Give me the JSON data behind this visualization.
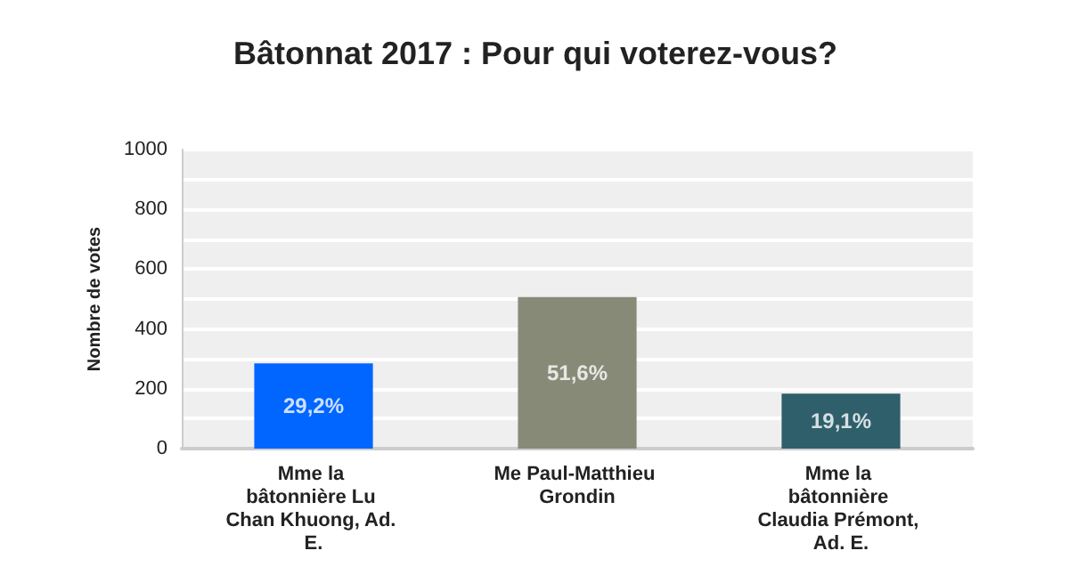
{
  "chart_data": {
    "type": "bar",
    "title": "Bâtonnat 2017 : Pour qui voterez-vous?",
    "ylabel": "Nombre de votes",
    "categories": [
      "Mme la bâtonnière Lu Chan Khuong, Ad. E.",
      "Me Paul-Matthieu Grondin",
      "Mme la bâtonnière Claudia Prémont, Ad. E."
    ],
    "values": [
      285,
      507,
      184
    ],
    "colors": [
      "#0066ff",
      "#888a78",
      "#2e5f6b"
    ],
    "annotations": [
      {
        "text": "29,2%",
        "x": "Mme la bâtonnière Lu Chan Khuong, Ad. E.",
        "y": 285
      },
      {
        "text": "51,6%",
        "x": "Me Paul-Matthieu Grondin",
        "y": 507
      },
      {
        "text": "19,1%",
        "x": "Mme la bâtonnière Claudia Prémont, Ad. E.",
        "y": 184
      }
    ],
    "ylim": [
      0,
      1000
    ],
    "yticks": [
      0,
      {
        "value": 100,
        "label": null
      },
      200,
      {
        "value": 300,
        "label": null
      },
      400,
      {
        "value": 500,
        "label": null
      },
      600,
      {
        "value": 700,
        "label": null
      },
      800,
      {
        "value": 900,
        "label": null
      },
      1000
    ],
    "grid": true
  }
}
